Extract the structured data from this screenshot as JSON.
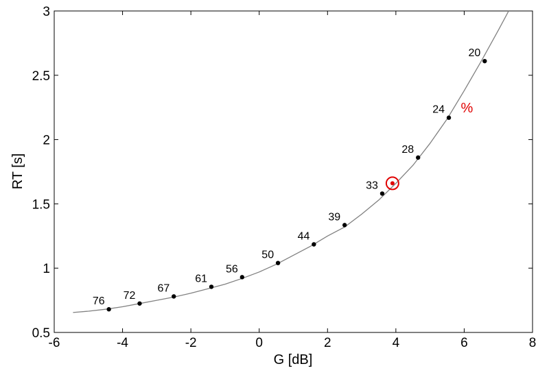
{
  "chart_data": {
    "type": "line",
    "title": "",
    "xlabel": "G  [dB]",
    "ylabel": "RT  [s]",
    "xlim": [
      -6,
      8
    ],
    "ylim": [
      0.5,
      3
    ],
    "xticks": [
      -6,
      -4,
      -2,
      0,
      2,
      4,
      6,
      8
    ],
    "yticks": [
      0.5,
      1,
      1.5,
      2,
      2.5,
      3
    ],
    "xtick_labels": [
      "-6",
      "-4",
      "-2",
      "0",
      "2",
      "4",
      "6",
      "8"
    ],
    "ytick_labels": [
      "0.5",
      "1",
      "1.5",
      "2",
      "2.5",
      "3"
    ],
    "grid": false,
    "curve": {
      "x": [
        -5.45,
        -5.0,
        -4.5,
        -4.0,
        -3.5,
        -3.0,
        -2.5,
        -2.0,
        -1.5,
        -1.0,
        -0.5,
        0.0,
        0.5,
        1.0,
        1.5,
        2.0,
        2.5,
        3.0,
        3.5,
        4.0,
        4.5,
        5.0,
        5.5,
        6.0,
        6.5,
        7.0,
        7.2,
        7.3
      ],
      "y": [
        0.655,
        0.665,
        0.68,
        0.7,
        0.725,
        0.75,
        0.775,
        0.805,
        0.84,
        0.875,
        0.92,
        0.97,
        1.03,
        1.1,
        1.17,
        1.25,
        1.32,
        1.42,
        1.53,
        1.66,
        1.8,
        1.97,
        2.16,
        2.38,
        2.61,
        2.85,
        2.95,
        3.0
      ],
      "color": "#808080"
    },
    "points": [
      {
        "x": -4.4,
        "y": 0.68,
        "label": "76"
      },
      {
        "x": -3.5,
        "y": 0.725,
        "label": "72"
      },
      {
        "x": -2.5,
        "y": 0.78,
        "label": "67"
      },
      {
        "x": -1.4,
        "y": 0.855,
        "label": "61"
      },
      {
        "x": -0.5,
        "y": 0.93,
        "label": "56"
      },
      {
        "x": 0.55,
        "y": 1.04,
        "label": "50"
      },
      {
        "x": 1.6,
        "y": 1.185,
        "label": "44"
      },
      {
        "x": 2.5,
        "y": 1.335,
        "label": "39"
      },
      {
        "x": 3.6,
        "y": 1.58,
        "label": "33"
      },
      {
        "x": 4.65,
        "y": 1.86,
        "label": "28"
      },
      {
        "x": 5.55,
        "y": 2.17,
        "label": "24"
      },
      {
        "x": 6.6,
        "y": 2.61,
        "label": "20"
      }
    ],
    "highlight": {
      "x": 3.9,
      "y": 1.66,
      "color": "#e00000"
    },
    "annotation": {
      "text": "%",
      "x": 5.9,
      "y": 2.21,
      "color": "#e00000"
    }
  }
}
